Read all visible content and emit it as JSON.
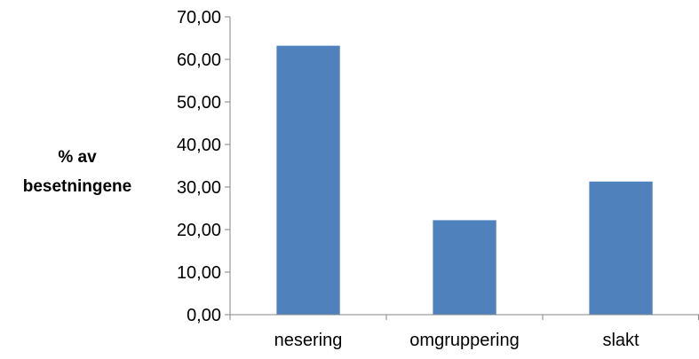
{
  "chart_data": {
    "type": "bar",
    "title": "",
    "xlabel": "",
    "ylabel_lines": [
      "% av",
      "besetningene"
    ],
    "categories": [
      "nesering",
      "omgruppering",
      "slakt"
    ],
    "values": [
      63.2,
      22.2,
      31.3
    ],
    "ylim": [
      0,
      70
    ],
    "yticks": [
      0,
      10,
      20,
      30,
      40,
      50,
      60,
      70
    ],
    "ytick_labels": [
      "0,00",
      "10,00",
      "20,00",
      "30,00",
      "40,00",
      "50,00",
      "60,00",
      "70,00"
    ],
    "grid": false,
    "legend": "none",
    "bar_color": "#4f81bd",
    "axis_color": "#868686"
  }
}
